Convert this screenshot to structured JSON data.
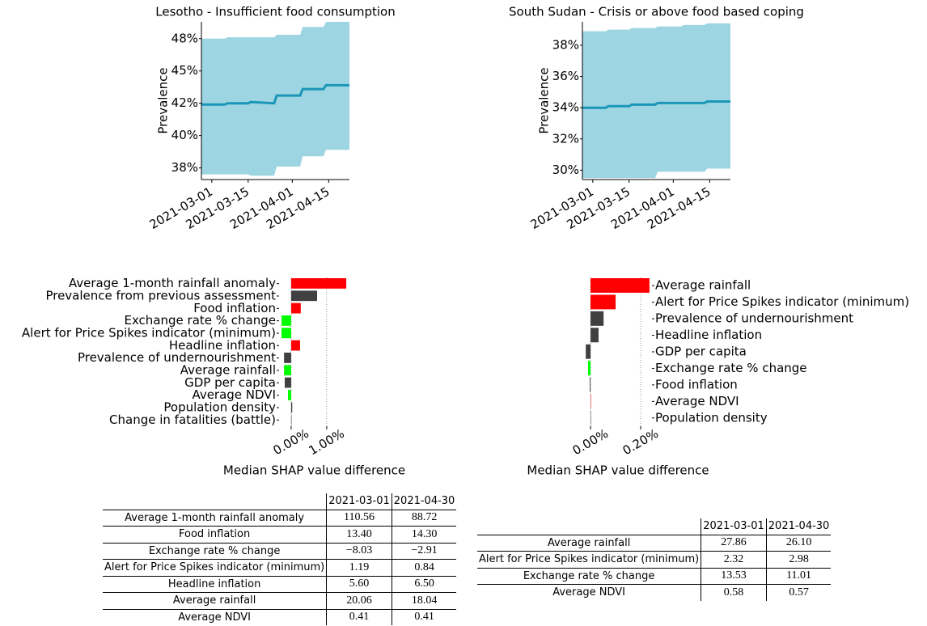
{
  "chart_data": [
    {
      "type": "line",
      "title": "Lesotho - Insufficient food consumption",
      "ylabel": "Prevalence",
      "x": [
        "2021-02-25",
        "2021-03-06",
        "2021-03-07",
        "2021-03-15",
        "2021-03-16",
        "2021-03-25",
        "2021-03-26",
        "2021-04-04",
        "2021-04-05",
        "2021-04-13",
        "2021-04-14",
        "2021-04-23"
      ],
      "values": [
        42.4,
        42.4,
        42.5,
        42.5,
        42.6,
        42.5,
        43.1,
        43.1,
        43.6,
        43.6,
        43.9,
        43.9
      ],
      "upper": [
        47.5,
        47.5,
        47.6,
        47.6,
        47.6,
        47.6,
        47.8,
        47.8,
        48.4,
        48.4,
        48.8,
        48.8
      ],
      "lower": [
        37.0,
        37.0,
        37.0,
        37.0,
        36.9,
        36.9,
        37.6,
        37.6,
        38.4,
        38.4,
        38.9,
        38.9
      ],
      "color": "#1b96b8",
      "band_color": "#9dd5e2",
      "xlim": [
        "2021-02-25",
        "2021-04-23"
      ],
      "xticks": [
        "2021-03-01",
        "2021-03-15",
        "2021-04-01",
        "2021-04-15"
      ],
      "ylim": [
        36.6,
        48.8
      ],
      "yticks": [
        {
          "value": 37.5,
          "label": "38%"
        },
        {
          "value": 40,
          "label": "40%"
        },
        {
          "value": 42.5,
          "label": "42%"
        },
        {
          "value": 45,
          "label": "45%"
        },
        {
          "value": 47.5,
          "label": "48%"
        }
      ]
    },
    {
      "type": "line",
      "title": "South Sudan - Crisis or above food based coping",
      "ylabel": "Prevalence",
      "x": [
        "2021-02-25",
        "2021-03-06",
        "2021-03-07",
        "2021-03-15",
        "2021-03-16",
        "2021-03-25",
        "2021-03-26",
        "2021-04-04",
        "2021-04-05",
        "2021-04-13",
        "2021-04-14",
        "2021-04-23"
      ],
      "values": [
        34.0,
        34.0,
        34.1,
        34.1,
        34.2,
        34.2,
        34.3,
        34.3,
        34.3,
        34.3,
        34.4,
        34.4
      ],
      "upper": [
        38.9,
        38.9,
        39.0,
        39.0,
        39.1,
        39.1,
        39.2,
        39.2,
        39.3,
        39.3,
        39.4,
        39.4
      ],
      "lower": [
        29.5,
        29.5,
        29.5,
        29.5,
        29.5,
        29.5,
        29.9,
        29.9,
        29.9,
        29.9,
        30.1,
        30.1
      ],
      "color": "#1b96b8",
      "band_color": "#9dd5e2",
      "xlim": [
        "2021-02-25",
        "2021-04-23"
      ],
      "xticks": [
        "2021-03-01",
        "2021-03-15",
        "2021-04-01",
        "2021-04-15"
      ],
      "ylim": [
        29.4,
        39.5
      ],
      "yticks": [
        {
          "value": 30,
          "label": "30%"
        },
        {
          "value": 32,
          "label": "32%"
        },
        {
          "value": 34,
          "label": "34%"
        },
        {
          "value": 36,
          "label": "36%"
        },
        {
          "value": 38,
          "label": "38%"
        }
      ]
    },
    {
      "type": "hbar",
      "xlabel": "Median SHAP value difference",
      "label_side": "left",
      "grid": true,
      "categories": [
        "Average 1-month rainfall anomaly",
        "Prevalence from previous assessment",
        "Food inflation",
        "Exchange rate % change",
        "Alert for Price Spikes indicator (minimum)",
        "Headline inflation",
        "Prevalence of undernourishment",
        "Average rainfall",
        "GDP per capita",
        "Average NDVI",
        "Population density",
        "Change in fatalities (battle)"
      ],
      "values": [
        1.55,
        0.73,
        0.27,
        -0.27,
        -0.27,
        0.25,
        -0.2,
        -0.2,
        -0.18,
        -0.09,
        0.03,
        0.01
      ],
      "colors": [
        "#ff0000",
        "#404040",
        "#ff0000",
        "#00ff00",
        "#00ff00",
        "#ff0000",
        "#404040",
        "#00ff00",
        "#404040",
        "#00ff00",
        "#404040",
        "#404040"
      ],
      "xlim": [
        -0.34,
        1.64
      ],
      "xticks": [
        {
          "value": 0,
          "label": "0.00%"
        },
        {
          "value": 1,
          "label": "1.00%"
        }
      ]
    },
    {
      "type": "hbar",
      "xlabel": "Median SHAP value difference",
      "label_side": "right",
      "grid": true,
      "categories": [
        "Average rainfall",
        "Alert for Price Spikes indicator (minimum)",
        "Prevalence of undernourishment",
        "Headline inflation",
        "GDP per capita",
        "Exchange rate % change",
        "Food inflation",
        "Average NDVI",
        "Population density"
      ],
      "values": [
        0.235,
        0.1,
        0.052,
        0.032,
        -0.019,
        -0.01,
        -0.003,
        0.001,
        0.0005
      ],
      "colors": [
        "#ff0000",
        "#ff0000",
        "#404040",
        "#404040",
        "#404040",
        "#00ff00",
        "#404040",
        "#ff0000",
        "#404040"
      ],
      "xlim": [
        -0.026,
        0.245
      ],
      "xticks": [
        {
          "value": 0,
          "label": "0.00%"
        },
        {
          "value": 0.2,
          "label": "0.20%"
        }
      ]
    }
  ],
  "tables": [
    {
      "columns": [
        "2021-03-01",
        "2021-04-30"
      ],
      "rows": [
        [
          "Average 1-month rainfall anomaly",
          "110.56",
          "88.72"
        ],
        [
          "Food inflation",
          "13.40",
          "14.30"
        ],
        [
          "Exchange rate % change",
          "−8.03",
          "−2.91"
        ],
        [
          "Alert for Price Spikes indicator (minimum)",
          "1.19",
          "0.84"
        ],
        [
          "Headline inflation",
          "5.60",
          "6.50"
        ],
        [
          "Average rainfall",
          "20.06",
          "18.04"
        ],
        [
          "Average NDVI",
          "0.41",
          "0.41"
        ]
      ]
    },
    {
      "columns": [
        "2021-03-01",
        "2021-04-30"
      ],
      "rows": [
        [
          "Average rainfall",
          "27.86",
          "26.10"
        ],
        [
          "Alert for Price Spikes indicator (minimum)",
          "2.32",
          "2.98"
        ],
        [
          "Exchange rate % change",
          "13.53",
          "11.01"
        ],
        [
          "Average NDVI",
          "0.58",
          "0.57"
        ]
      ]
    }
  ]
}
